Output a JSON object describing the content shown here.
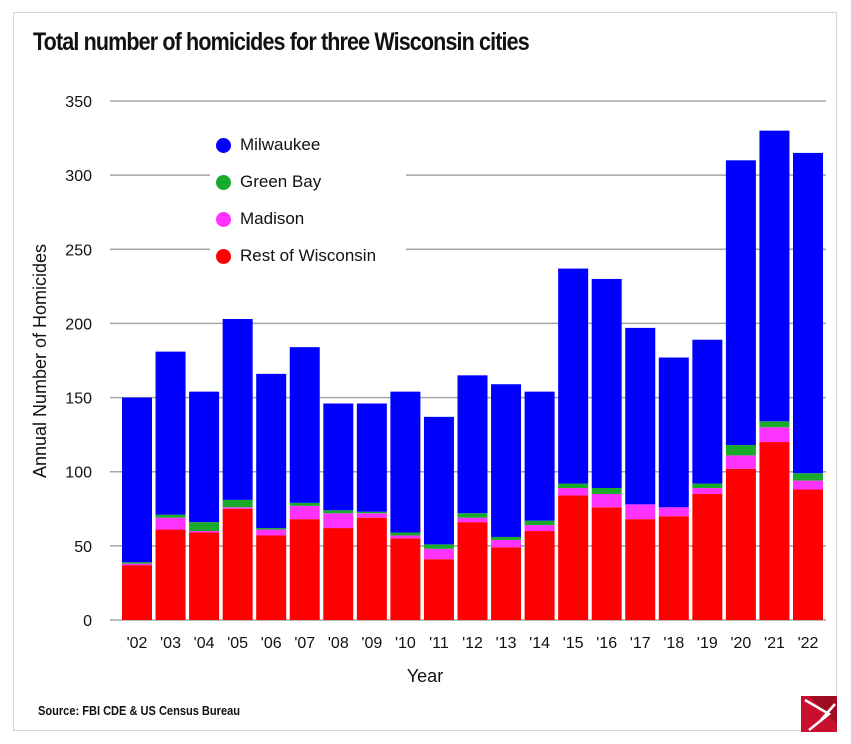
{
  "title": "Total number of homicides for three Wisconsin cities",
  "source": "Source: FBI CDE & US Census Bureau",
  "logo": "logo-icon",
  "chart_data": {
    "type": "bar",
    "stacked": true,
    "title": "Total number of homicides for three Wisconsin cities",
    "xlabel": "Year",
    "ylabel": "Annual Number of Homicides",
    "ylim": [
      0,
      350
    ],
    "yticks": [
      0,
      50,
      100,
      150,
      200,
      250,
      300,
      350
    ],
    "grid": true,
    "legend_position": "top-left",
    "categories": [
      "'02",
      "'03",
      "'04",
      "'05",
      "'06",
      "'07",
      "'08",
      "'09",
      "'10",
      "'11",
      "'12",
      "'13",
      "'14",
      "'15",
      "'16",
      "'17",
      "'18",
      "'19",
      "'20",
      "'21",
      "'22"
    ],
    "series": [
      {
        "name": "Rest of Wisconsin",
        "color": "#ff0000",
        "values": [
          37,
          61,
          59,
          75,
          57,
          68,
          62,
          69,
          55,
          41,
          66,
          49,
          60,
          84,
          76,
          68,
          70,
          85,
          102,
          120,
          88
        ]
      },
      {
        "name": "Madison",
        "color": "#ff33ff",
        "values": [
          1,
          8,
          1,
          1,
          4,
          9,
          10,
          3,
          2,
          7,
          3,
          5,
          4,
          5,
          9,
          10,
          6,
          4,
          9,
          10,
          6
        ]
      },
      {
        "name": "Green Bay",
        "color": "#1aaa2a",
        "values": [
          1,
          2,
          6,
          5,
          1,
          2,
          2,
          1,
          2,
          3,
          3,
          2,
          3,
          3,
          4,
          0,
          0,
          3,
          7,
          4,
          5
        ]
      },
      {
        "name": "Milwaukee",
        "color": "#0000ff",
        "values": [
          111,
          110,
          88,
          122,
          104,
          105,
          72,
          73,
          95,
          86,
          93,
          103,
          87,
          145,
          141,
          119,
          101,
          97,
          192,
          196,
          216
        ]
      }
    ],
    "legend_order": [
      "Milwaukee",
      "Green Bay",
      "Madison",
      "Rest of Wisconsin"
    ]
  }
}
